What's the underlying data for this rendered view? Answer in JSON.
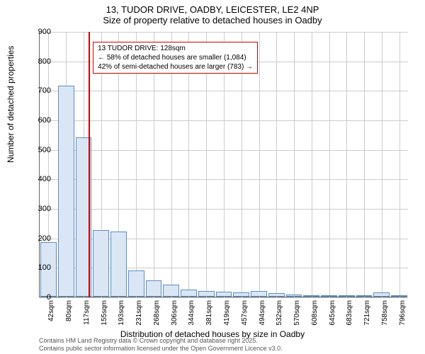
{
  "title": {
    "line1": "13, TUDOR DRIVE, OADBY, LEICESTER, LE2 4NP",
    "line2": "Size of property relative to detached houses in Oadby"
  },
  "histogram": {
    "type": "histogram",
    "ylabel": "Number of detached properties",
    "xlabel": "Distribution of detached houses by size in Oadby",
    "ylim": [
      0,
      900
    ],
    "ytick_step": 100,
    "yticks": [
      0,
      100,
      200,
      300,
      400,
      500,
      600,
      700,
      800,
      900
    ],
    "xticks": [
      "42sqm",
      "80sqm",
      "117sqm",
      "155sqm",
      "193sqm",
      "231sqm",
      "268sqm",
      "306sqm",
      "344sqm",
      "381sqm",
      "419sqm",
      "457sqm",
      "494sqm",
      "532sqm",
      "570sqm",
      "608sqm",
      "645sqm",
      "683sqm",
      "721sqm",
      "758sqm",
      "796sqm"
    ],
    "bar_color": "#dbe6f4",
    "bar_border_color": "#5b8ec4",
    "grid_color": "#cccccc",
    "background_color": "#ffffff",
    "axis_color": "#666666",
    "values": [
      185,
      715,
      540,
      225,
      220,
      90,
      55,
      40,
      25,
      20,
      18,
      15,
      20,
      12,
      8,
      5,
      5,
      3,
      5,
      15,
      3
    ]
  },
  "marker": {
    "position_sqm": 128,
    "line_color": "#cc0000",
    "box_border_color": "#cc0000",
    "line1": "13 TUDOR DRIVE: 128sqm",
    "line2": "← 58% of detached houses are smaller (1,084)",
    "line3": "42% of semi-detached houses are larger (783) →"
  },
  "footer": {
    "line1": "Contains HM Land Registry data © Crown copyright and database right 2025.",
    "line2": "Contains public sector information licensed under the Open Government Licence v3.0."
  }
}
